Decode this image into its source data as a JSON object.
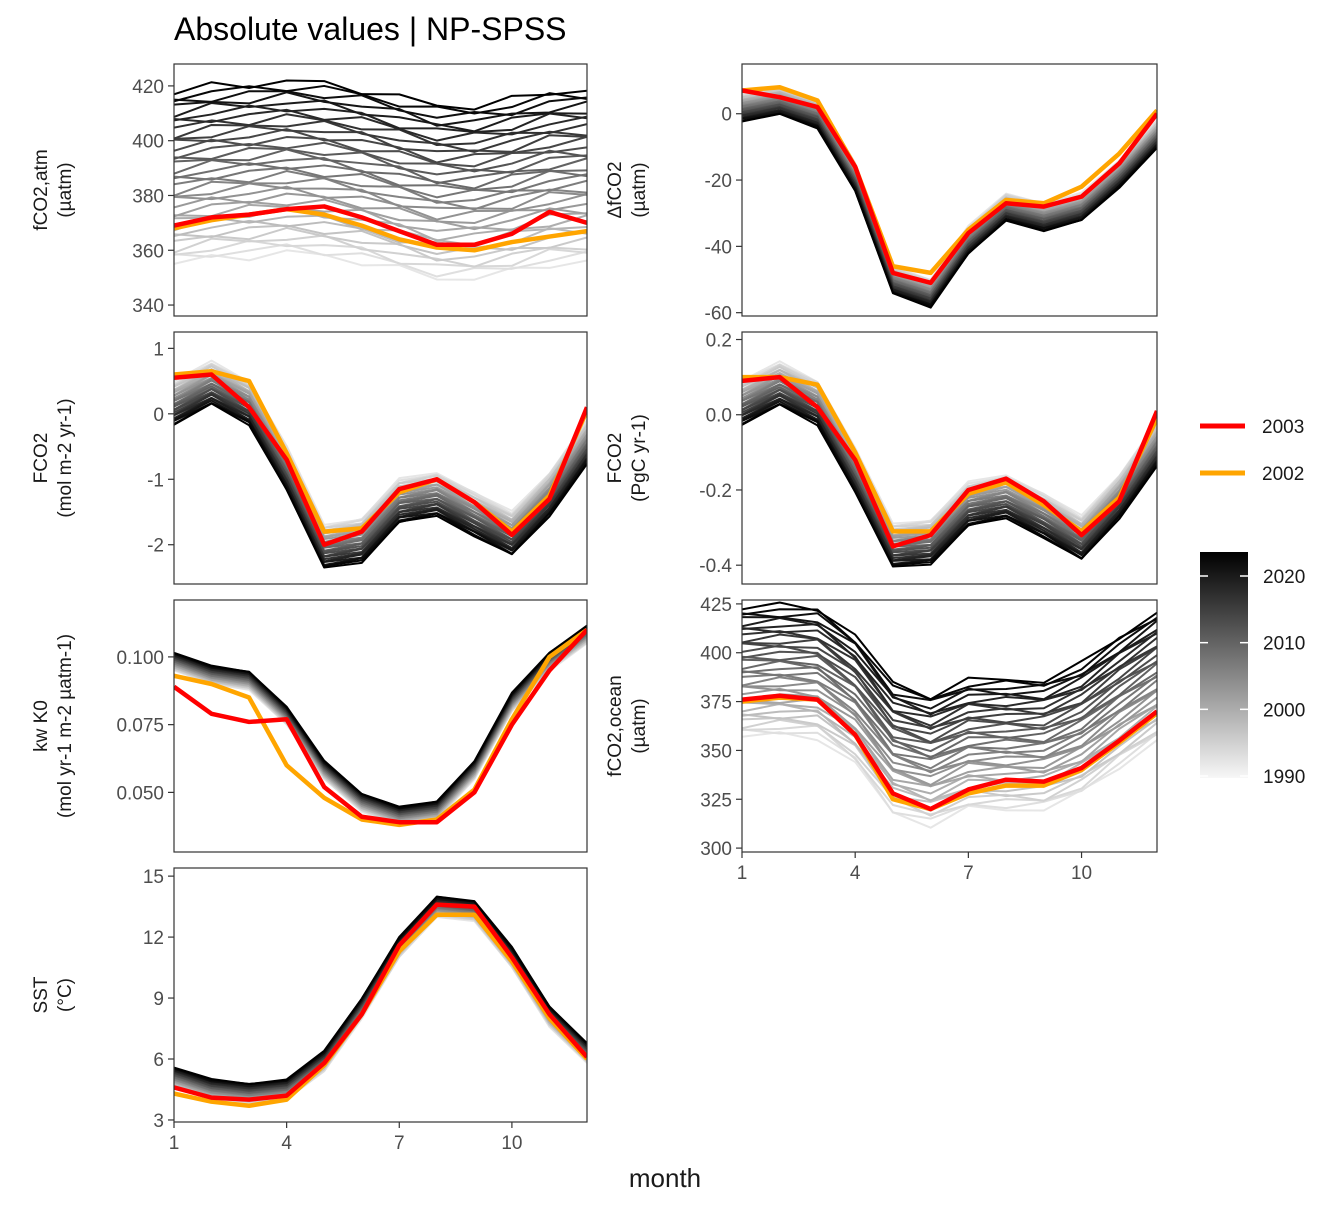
{
  "figure": {
    "title": "Absolute values | NP-SPSS",
    "xlabel": "month"
  },
  "legend": {
    "highlight": [
      {
        "label": "2003",
        "color": "#ff0000"
      },
      {
        "label": "2002",
        "color": "#ffa500"
      }
    ],
    "colorbar": {
      "ticks": [
        "2020",
        "2010",
        "2000",
        "1990"
      ],
      "range": [
        1990,
        2023
      ],
      "low_color": "#f7f7f7",
      "high_color": "#000000"
    }
  },
  "chart_data": [
    {
      "id": "fco2_atm",
      "type": "line",
      "ylabel": [
        "fCO2,atm",
        "(µatm)"
      ],
      "xticks": [
        1,
        4,
        7,
        10
      ],
      "yticks": [
        340,
        360,
        380,
        400,
        420
      ],
      "ylim": [
        336,
        428
      ],
      "background": {
        "start": [
          355,
          357,
          358,
          359,
          358,
          356,
          353,
          350,
          350,
          352,
          355,
          356
        ],
        "step": 1.9
      },
      "series": [
        {
          "name": "2003",
          "color": "#ff0000",
          "values": [
            369,
            372,
            373,
            375,
            376,
            372,
            367,
            362,
            362,
            366,
            374,
            370
          ]
        },
        {
          "name": "2002",
          "color": "#ffa500",
          "values": [
            368,
            371,
            373,
            375,
            373,
            369,
            364,
            361,
            360,
            363,
            365,
            367
          ]
        }
      ]
    },
    {
      "id": "dfco2",
      "type": "line",
      "ylabel": [
        "ΔfCO2",
        "(µatm)"
      ],
      "xticks": [
        1,
        4,
        7,
        10
      ],
      "yticks": [
        -60,
        -40,
        -20,
        0
      ],
      "ylim": [
        -61,
        15
      ],
      "background": {
        "start": [
          6,
          8,
          4,
          -15,
          -46,
          -50,
          -34,
          -24,
          -27,
          -24,
          -14,
          -2
        ],
        "step": -0.25
      },
      "series": [
        {
          "name": "2003",
          "color": "#ff0000",
          "values": [
            7,
            5,
            2,
            -16,
            -48,
            -51,
            -36,
            -27,
            -28,
            -25,
            -15,
            0
          ]
        },
        {
          "name": "2002",
          "color": "#ffa500",
          "values": [
            7,
            8,
            4,
            -16,
            -46,
            -48,
            -35,
            -26,
            -27,
            -22,
            -12,
            1
          ]
        }
      ]
    },
    {
      "id": "fco2_flux_area",
      "type": "line",
      "ylabel": [
        "FCO2",
        "(mol m-2 yr-1)"
      ],
      "xticks": [
        1,
        4,
        7,
        10
      ],
      "yticks": [
        -2,
        -1,
        0,
        1
      ],
      "ylim": [
        -2.6,
        1.25
      ],
      "background": {
        "start": [
          0.5,
          0.8,
          0.5,
          -0.5,
          -1.7,
          -1.6,
          -1.0,
          -0.9,
          -1.2,
          -1.5,
          -0.9,
          -0.1
        ],
        "step": -0.02
      },
      "series": [
        {
          "name": "2003",
          "color": "#ff0000",
          "values": [
            0.55,
            0.6,
            0.1,
            -0.7,
            -2.0,
            -1.8,
            -1.15,
            -1.0,
            -1.35,
            -1.85,
            -1.3,
            0.1
          ]
        },
        {
          "name": "2002",
          "color": "#ffa500",
          "values": [
            0.6,
            0.65,
            0.5,
            -0.6,
            -1.8,
            -1.75,
            -1.2,
            -1.0,
            -1.35,
            -1.8,
            -1.25,
            0.05
          ]
        }
      ]
    },
    {
      "id": "fco2_flux_total",
      "type": "line",
      "ylabel": [
        "FCO2",
        "(PgC yr-1)"
      ],
      "xticks": [
        1,
        4,
        7,
        10
      ],
      "yticks": [
        -0.4,
        -0.2,
        0.0,
        0.2
      ],
      "ylim": [
        -0.45,
        0.22
      ],
      "background": {
        "start": [
          0.09,
          0.14,
          0.09,
          -0.09,
          -0.29,
          -0.28,
          -0.18,
          -0.16,
          -0.21,
          -0.27,
          -0.16,
          -0.02
        ],
        "step": -0.0035
      },
      "series": [
        {
          "name": "2003",
          "color": "#ff0000",
          "values": [
            0.09,
            0.1,
            0.02,
            -0.12,
            -0.35,
            -0.32,
            -0.2,
            -0.17,
            -0.23,
            -0.32,
            -0.23,
            0.01
          ]
        },
        {
          "name": "2002",
          "color": "#ffa500",
          "values": [
            0.1,
            0.1,
            0.08,
            -0.1,
            -0.31,
            -0.31,
            -0.21,
            -0.18,
            -0.24,
            -0.31,
            -0.22,
            -0.01
          ]
        }
      ]
    },
    {
      "id": "kw_k0",
      "type": "line",
      "ylabel": [
        "kw K0",
        "(mol yr-1 m-2 µatm-1)"
      ],
      "xticks": [
        1,
        4,
        7,
        10
      ],
      "yticks": [
        0.05,
        0.075,
        0.1
      ],
      "ylim": [
        0.028,
        0.121
      ],
      "yticklabels": [
        "0.050",
        "0.075",
        "0.100"
      ],
      "background": {
        "start": [
          0.095,
          0.09,
          0.088,
          0.075,
          0.055,
          0.043,
          0.038,
          0.04,
          0.055,
          0.08,
          0.095,
          0.105
        ],
        "step": 0.0002
      },
      "series": [
        {
          "name": "2003",
          "color": "#ff0000",
          "values": [
            0.089,
            0.079,
            0.076,
            0.077,
            0.052,
            0.041,
            0.039,
            0.039,
            0.05,
            0.075,
            0.095,
            0.11
          ]
        },
        {
          "name": "2002",
          "color": "#ffa500",
          "values": [
            0.093,
            0.09,
            0.085,
            0.06,
            0.048,
            0.04,
            0.038,
            0.04,
            0.051,
            0.077,
            0.1,
            0.11
          ]
        }
      ]
    },
    {
      "id": "fco2_ocean",
      "type": "line",
      "ylabel": [
        "fCO2,ocean",
        "(µatm)"
      ],
      "xticks": [
        1,
        4,
        7,
        10
      ],
      "yticks": [
        300,
        325,
        350,
        375,
        400,
        425
      ],
      "ylim": [
        298,
        427
      ],
      "background": {
        "start": [
          357,
          358,
          357,
          343,
          318,
          312,
          320,
          320,
          320,
          328,
          342,
          355
        ],
        "step": 2.0
      },
      "series": [
        {
          "name": "2003",
          "color": "#ff0000",
          "values": [
            376,
            378,
            376,
            358,
            328,
            320,
            330,
            335,
            334,
            341,
            355,
            370
          ]
        },
        {
          "name": "2002",
          "color": "#ffa500",
          "values": [
            375,
            377,
            376,
            358,
            325,
            320,
            328,
            332,
            332,
            340,
            354,
            369
          ]
        }
      ]
    },
    {
      "id": "sst",
      "type": "line",
      "ylabel": [
        "SST",
        "(°C)"
      ],
      "xticks": [
        1,
        4,
        7,
        10
      ],
      "yticks": [
        3,
        6,
        9,
        12,
        15
      ],
      "ylim": [
        2.9,
        15.4
      ],
      "background": {
        "start": [
          4.6,
          4.0,
          3.8,
          4.0,
          5.4,
          8.0,
          11.0,
          13.0,
          12.8,
          10.5,
          7.6,
          5.8
        ],
        "step": 0.03
      },
      "series": [
        {
          "name": "2003",
          "color": "#ff0000",
          "values": [
            4.6,
            4.1,
            4.0,
            4.2,
            5.8,
            8.2,
            11.6,
            13.6,
            13.5,
            11.0,
            8.2,
            6.1
          ]
        },
        {
          "name": "2002",
          "color": "#ffa500",
          "values": [
            4.3,
            3.9,
            3.7,
            4.0,
            5.7,
            8.2,
            11.3,
            13.1,
            13.1,
            10.8,
            8.0,
            6.0
          ]
        }
      ]
    }
  ]
}
